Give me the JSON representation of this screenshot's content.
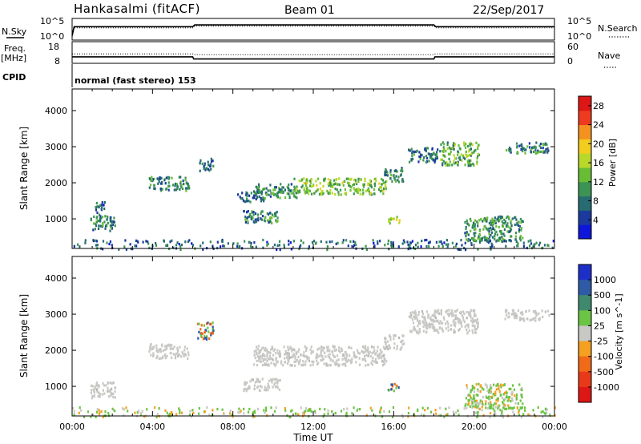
{
  "header": {
    "station": "Hankasalmi (fitACF)",
    "beam": "Beam 01",
    "date": "22/Sep/2017"
  },
  "chart_data": [
    {
      "type": "line",
      "name": "nsky-nsearch",
      "left_label": "N.Sky",
      "right_label": "N.Search",
      "left_ticks": [
        "10^5",
        "10^0"
      ],
      "right_ticks": [
        "10^5",
        "10^0"
      ],
      "x_hours": [
        0,
        0.1,
        6,
        6.1,
        18,
        18.1,
        24
      ],
      "nsky_level": [
        0.2,
        0.62,
        0.62,
        0.7,
        0.7,
        0.62,
        0.62
      ],
      "nsearch_level": [
        0.2,
        0.62,
        0.62,
        0.7,
        0.7,
        0.62,
        0.62
      ]
    },
    {
      "type": "line",
      "name": "freq-nave",
      "left_label_1": "Freq.",
      "left_label_2": "[MHz]",
      "right_label": "Nave",
      "left_ticks": [
        "18",
        "8"
      ],
      "right_ticks": [
        "60",
        "0"
      ],
      "x_hours": [
        0,
        6,
        6.05,
        18,
        18.05,
        24
      ],
      "freq_mhz": [
        11,
        11,
        10,
        10,
        11,
        11
      ],
      "nave": [
        26,
        26,
        24,
        24,
        26,
        26
      ]
    },
    {
      "type": "text",
      "name": "cpid",
      "label": "CPID",
      "value": "normal (fast stereo) 153"
    },
    {
      "type": "heatmap",
      "name": "power",
      "ylabel": "Slant Range [km]",
      "yticks": [
        1000,
        2000,
        3000,
        4000
      ],
      "ylim": [
        180,
        4600
      ],
      "xlim": [
        0,
        24
      ],
      "colorbar_label": "Power [dB]",
      "colorbar_ticks": [
        4,
        8,
        12,
        16,
        20,
        24,
        28
      ],
      "colorbar_range": [
        0,
        30
      ],
      "colorbar_colors": [
        "#0d16d9",
        "#1b3a9e",
        "#276b73",
        "#3b9453",
        "#69bd35",
        "#b8d82a",
        "#f2cc1f",
        "#f5921f",
        "#ee3b1f",
        "#dd1616"
      ],
      "echo_regions": [
        {
          "t0": 0.9,
          "t1": 2.1,
          "r0": 700,
          "r1": 1150,
          "val": 9
        },
        {
          "t0": 1.0,
          "t1": 1.6,
          "r0": 1200,
          "r1": 1500,
          "val": 7
        },
        {
          "t0": 3.8,
          "t1": 5.8,
          "r0": 1800,
          "r1": 2200,
          "val": 9
        },
        {
          "t0": 6.3,
          "t1": 7.0,
          "r0": 2350,
          "r1": 2700,
          "val": 8
        },
        {
          "t0": 8.2,
          "t1": 9.5,
          "r0": 1500,
          "r1": 1800,
          "val": 6
        },
        {
          "t0": 8.5,
          "t1": 10.3,
          "r0": 900,
          "r1": 1250,
          "val": 9
        },
        {
          "t0": 9.0,
          "t1": 11.2,
          "r0": 1600,
          "r1": 2000,
          "val": 10
        },
        {
          "t0": 11.0,
          "t1": 15.6,
          "r0": 1700,
          "r1": 2150,
          "val": 14
        },
        {
          "t0": 15.5,
          "t1": 16.5,
          "r0": 2050,
          "r1": 2450,
          "val": 9
        },
        {
          "t0": 16.7,
          "t1": 18.3,
          "r0": 2600,
          "r1": 3000,
          "val": 8
        },
        {
          "t0": 18.3,
          "t1": 20.2,
          "r0": 2500,
          "r1": 3150,
          "val": 12
        },
        {
          "t0": 21.5,
          "t1": 23.7,
          "r0": 2850,
          "r1": 3150,
          "val": 9
        },
        {
          "t0": 19.5,
          "t1": 22.4,
          "r0": 400,
          "r1": 1100,
          "val": 10
        },
        {
          "t0": 15.7,
          "t1": 16.3,
          "r0": 900,
          "r1": 1100,
          "val": 14
        },
        {
          "t0": 0.0,
          "t1": 24.0,
          "r0": 180,
          "r1": 450,
          "val": 7
        }
      ]
    },
    {
      "type": "heatmap",
      "name": "velocity",
      "ylabel": "Slant Range [km]",
      "yticks": [
        1000,
        2000,
        3000,
        4000
      ],
      "ylim": [
        180,
        4600
      ],
      "xlim": [
        0,
        24
      ],
      "xlabel": "Time UT",
      "xticks": [
        "00:00",
        "04:00",
        "08:00",
        "12:00",
        "16:00",
        "20:00",
        "00:00"
      ],
      "colorbar_label": "Velocity [m s^-1]",
      "colorbar_ticks": [
        "1000",
        "500",
        "100",
        "25",
        "-25",
        "-100",
        "-500",
        "-1000"
      ],
      "colorbar_colors": [
        "#1e2fc8",
        "#2f5aa6",
        "#3f8a6e",
        "#6cc445",
        "#c8c8c4",
        "#f5a020",
        "#f06a18",
        "#e83a18",
        "#dd1616"
      ],
      "echo_regions": [
        {
          "t0": 0.9,
          "t1": 2.1,
          "r0": 700,
          "r1": 1150,
          "val": "ground"
        },
        {
          "t0": 3.8,
          "t1": 5.8,
          "r0": 1800,
          "r1": 2200,
          "val": "ground"
        },
        {
          "t0": 6.2,
          "t1": 7.0,
          "r0": 2300,
          "r1": 2800,
          "val": "negative"
        },
        {
          "t0": 8.5,
          "t1": 10.3,
          "r0": 900,
          "r1": 1250,
          "val": "ground"
        },
        {
          "t0": 9.0,
          "t1": 15.6,
          "r0": 1600,
          "r1": 2150,
          "val": "ground"
        },
        {
          "t0": 15.5,
          "t1": 16.5,
          "r0": 2050,
          "r1": 2450,
          "val": "ground"
        },
        {
          "t0": 16.7,
          "t1": 20.2,
          "r0": 2500,
          "r1": 3150,
          "val": "ground"
        },
        {
          "t0": 21.5,
          "t1": 23.7,
          "r0": 2850,
          "r1": 3150,
          "val": "ground"
        },
        {
          "t0": 19.5,
          "t1": 22.4,
          "r0": 400,
          "r1": 1100,
          "val": "positive"
        },
        {
          "t0": 15.7,
          "t1": 16.3,
          "r0": 900,
          "r1": 1100,
          "val": "negative"
        },
        {
          "t0": 0.0,
          "t1": 24.0,
          "r0": 180,
          "r1": 450,
          "val": "positive"
        }
      ]
    }
  ]
}
